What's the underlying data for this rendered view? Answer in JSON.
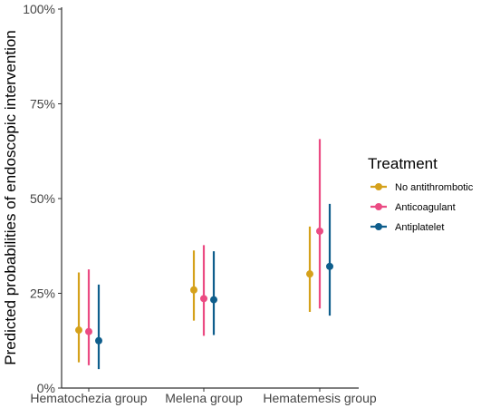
{
  "chart_data": {
    "type": "scatter",
    "subtype": "point-range",
    "ylabel": "Predicted probabilities of endoscopic intervention",
    "xlabel": "",
    "categories": [
      "Hematochezia group",
      "Melena group",
      "Hematemesis group"
    ],
    "y_ticks": [
      "0%",
      "25%",
      "50%",
      "75%",
      "100%"
    ],
    "ylim": [
      0,
      100
    ],
    "grid": false,
    "legend": {
      "title": "Treatment",
      "placement": "right"
    },
    "series": [
      {
        "name": "No antithrombotic",
        "color": "#D5A11B",
        "values": [
          15.3,
          25.9,
          30.1
        ],
        "lower": [
          6.8,
          17.8,
          20.1
        ],
        "upper": [
          30.5,
          36.3,
          42.6
        ]
      },
      {
        "name": "Anticoagulant",
        "color": "#EB4B83",
        "values": [
          14.9,
          23.6,
          41.4
        ],
        "lower": [
          6.0,
          13.8,
          21.0
        ],
        "upper": [
          31.3,
          37.7,
          65.7
        ]
      },
      {
        "name": "Antiplatelet",
        "color": "#0F5E8C",
        "values": [
          12.5,
          23.3,
          32.1
        ],
        "lower": [
          5.0,
          14.0,
          19.1
        ],
        "upper": [
          27.3,
          36.1,
          48.6
        ]
      }
    ]
  }
}
